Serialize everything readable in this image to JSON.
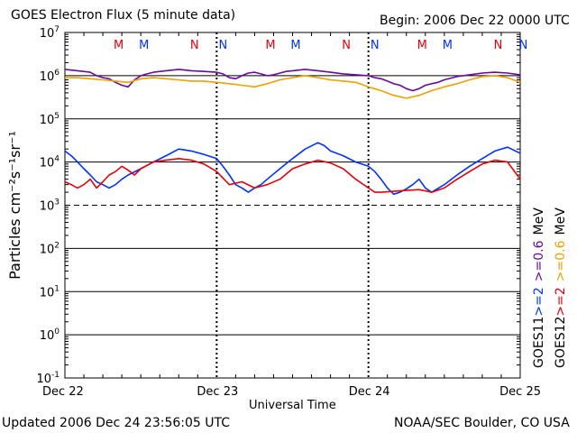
{
  "title": "GOES Electron Flux (5 minute data)",
  "begin": "Begin: 2006 Dec 22 0000 UTC",
  "updated": "Updated 2006 Dec 24 23:56:05 UTC",
  "credit": "NOAA/SEC Boulder, CO USA",
  "chart_data": {
    "type": "line",
    "title": "GOES Electron Flux (5 minute data)",
    "xlabel": "Universal Time",
    "ylabel": "Particles cm⁻²s⁻¹sr⁻¹",
    "y_scale": "log",
    "ylim": [
      0.1,
      10000000
    ],
    "y_ticks": [
      {
        "base": "10",
        "exp": "7",
        "value": 10000000
      },
      {
        "base": "10",
        "exp": "6",
        "value": 1000000
      },
      {
        "base": "10",
        "exp": "5",
        "value": 100000
      },
      {
        "base": "10",
        "exp": "4",
        "value": 10000
      },
      {
        "base": "10",
        "exp": "3",
        "value": 1000
      },
      {
        "base": "10",
        "exp": "2",
        "value": 100
      },
      {
        "base": "10",
        "exp": "1",
        "value": 10
      },
      {
        "base": "10",
        "exp": "0",
        "value": 1
      },
      {
        "base": "10",
        "exp": "-1",
        "value": 0.1
      }
    ],
    "x_range_hours": [
      0,
      72
    ],
    "x_ticks": [
      {
        "label": "Dec 22",
        "hour": 0
      },
      {
        "label": "Dec 23",
        "hour": 24
      },
      {
        "label": "Dec 24",
        "hour": 48
      },
      {
        "label": "Dec 25",
        "hour": 72
      }
    ],
    "threshold": {
      "value": 1000,
      "style": "dashed"
    },
    "mn_markers": [
      {
        "label": "M",
        "hour": 8.5,
        "color": "#e8000b"
      },
      {
        "label": "M",
        "hour": 12.5,
        "color": "#0033ff"
      },
      {
        "label": "N",
        "hour": 20.5,
        "color": "#e8000b"
      },
      {
        "label": "N",
        "hour": 25.0,
        "color": "#0033ff"
      },
      {
        "label": "M",
        "hour": 32.5,
        "color": "#e8000b"
      },
      {
        "label": "M",
        "hour": 36.5,
        "color": "#0033ff"
      },
      {
        "label": "N",
        "hour": 44.5,
        "color": "#e8000b"
      },
      {
        "label": "N",
        "hour": 49.0,
        "color": "#0033ff"
      },
      {
        "label": "M",
        "hour": 56.5,
        "color": "#e8000b"
      },
      {
        "label": "M",
        "hour": 60.5,
        "color": "#0033ff"
      },
      {
        "label": "N",
        "hour": 68.5,
        "color": "#e8000b"
      },
      {
        "label": "N",
        "hour": 72.5,
        "color": "#0033ff"
      }
    ],
    "legend": [
      {
        "satellite": "GOES11",
        "items": [
          {
            "text": ">=2",
            "color": "#0033ff"
          },
          {
            "text": ">=0.6",
            "color": "#6a0a9c"
          },
          {
            "text": "MeV",
            "color": "#000000"
          }
        ]
      },
      {
        "satellite": "GOES12",
        "items": [
          {
            "text": ">=2",
            "color": "#e8000b"
          },
          {
            "text": ">=0.6",
            "color": "#f0a000"
          },
          {
            "text": "MeV",
            "color": "#000000"
          }
        ]
      }
    ],
    "series": [
      {
        "name": "GOES11 >=0.6 MeV",
        "color": "#6a0a9c",
        "x": [
          0,
          2,
          4,
          5,
          6,
          7,
          8,
          9,
          10,
          11,
          12,
          13,
          14,
          16,
          18,
          20,
          22,
          24,
          25,
          26,
          27,
          28,
          29,
          30,
          31,
          32,
          33,
          34,
          35,
          36,
          38,
          40,
          42,
          44,
          46,
          48,
          49,
          50,
          51,
          52,
          53,
          54,
          55,
          56,
          57,
          58,
          59,
          60,
          62,
          64,
          66,
          68,
          70,
          72
        ],
        "y": [
          1400000,
          1300000,
          1200000,
          1000000,
          900000,
          850000,
          700000,
          600000,
          550000,
          800000,
          1000000,
          1100000,
          1200000,
          1300000,
          1400000,
          1300000,
          1250000,
          1200000,
          1100000,
          900000,
          850000,
          1000000,
          1150000,
          1200000,
          1100000,
          1000000,
          1050000,
          1150000,
          1250000,
          1300000,
          1400000,
          1300000,
          1200000,
          1100000,
          1050000,
          1000000,
          900000,
          850000,
          750000,
          650000,
          600000,
          500000,
          450000,
          500000,
          600000,
          650000,
          700000,
          800000,
          950000,
          1050000,
          1150000,
          1200000,
          1150000,
          1050000
        ]
      },
      {
        "name": "GOES12 >=0.6 MeV",
        "color": "#f0a000",
        "x": [
          0,
          2,
          4,
          6,
          8,
          10,
          12,
          14,
          16,
          18,
          20,
          22,
          24,
          26,
          28,
          30,
          32,
          34,
          36,
          38,
          40,
          42,
          44,
          46,
          48,
          50,
          52,
          54,
          56,
          58,
          60,
          62,
          64,
          66,
          68,
          70,
          72
        ],
        "y": [
          900000,
          900000,
          850000,
          800000,
          750000,
          700000,
          850000,
          900000,
          850000,
          800000,
          750000,
          750000,
          700000,
          650000,
          600000,
          550000,
          650000,
          800000,
          900000,
          1000000,
          900000,
          800000,
          750000,
          700000,
          550000,
          450000,
          350000,
          300000,
          350000,
          450000,
          550000,
          650000,
          800000,
          950000,
          1000000,
          900000,
          700000
        ]
      },
      {
        "name": "GOES11 >=2 MeV",
        "color": "#0033ff",
        "x": [
          0,
          1,
          2,
          3,
          4,
          5,
          6,
          7,
          8,
          9,
          10,
          12,
          14,
          16,
          18,
          20,
          22,
          24,
          25,
          26,
          27,
          28,
          29,
          30,
          31,
          32,
          34,
          36,
          38,
          40,
          41,
          42,
          44,
          46,
          48,
          49,
          50,
          51,
          52,
          53,
          54,
          55,
          56,
          57,
          58,
          60,
          62,
          64,
          66,
          68,
          70,
          72
        ],
        "y": [
          18000,
          14000,
          10000,
          7000,
          5000,
          3500,
          3000,
          2500,
          3000,
          4000,
          5000,
          7000,
          10000,
          14000,
          20000,
          18000,
          15000,
          12000,
          8000,
          5000,
          3000,
          2500,
          2000,
          2500,
          3000,
          4000,
          7000,
          12000,
          20000,
          28000,
          24000,
          18000,
          14000,
          10000,
          8000,
          6000,
          4000,
          2500,
          1800,
          2000,
          2400,
          3000,
          4000,
          2500,
          2000,
          3000,
          5000,
          8000,
          12000,
          18000,
          22000,
          16000
        ]
      },
      {
        "name": "GOES12 >=2 MeV",
        "color": "#e8000b",
        "x": [
          0,
          1,
          2,
          3,
          4,
          5,
          6,
          7,
          8,
          9,
          10,
          11,
          12,
          14,
          16,
          18,
          20,
          22,
          24,
          26,
          28,
          30,
          32,
          34,
          36,
          38,
          40,
          42,
          44,
          46,
          48,
          49,
          50,
          52,
          54,
          56,
          58,
          60,
          62,
          64,
          66,
          68,
          70,
          72
        ],
        "y": [
          3500,
          3000,
          2500,
          3000,
          4000,
          2500,
          3500,
          5000,
          6000,
          8000,
          6500,
          5000,
          7000,
          10000,
          11000,
          12000,
          11000,
          9000,
          6000,
          3000,
          3500,
          2500,
          3000,
          4000,
          7000,
          9000,
          11000,
          9500,
          7000,
          4000,
          2500,
          2000,
          2000,
          2100,
          2200,
          2300,
          2000,
          2500,
          4000,
          6000,
          9000,
          11000,
          10000,
          4000
        ]
      }
    ]
  }
}
